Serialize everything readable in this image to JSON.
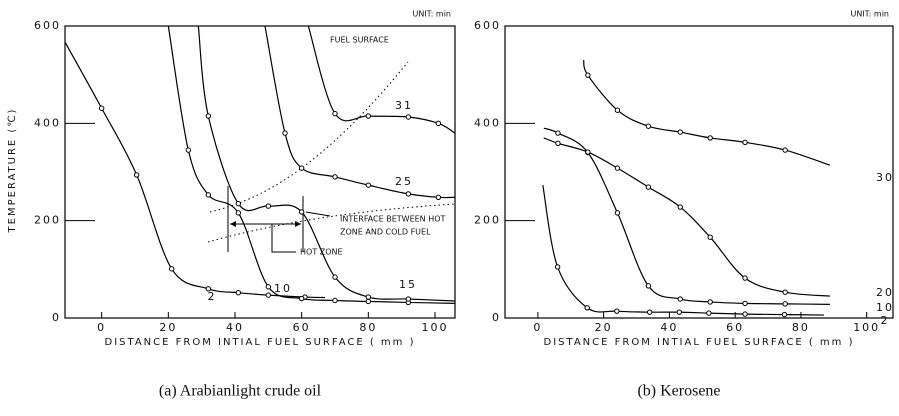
{
  "chart_data": [
    {
      "type": "line",
      "caption": "(a) Arabianlight crude oil",
      "unit_label": "UNIT: min",
      "xlabel": "DISTANCE FROM INTIAL FUEL SURFACE ( mm )",
      "ylabel": "TEMPERATURE (℃)",
      "annotations": [
        "FUEL SURFACE",
        "INTERFACE BETWEEN HOT",
        "ZONE AND COLD FUEL",
        "HOT ZONE"
      ],
      "xlim": [
        -11,
        106
      ],
      "ylim": [
        0,
        600
      ],
      "xticks": [
        0,
        20,
        40,
        60,
        80,
        100
      ],
      "yticks": [
        0,
        200,
        400,
        600
      ],
      "series": [
        {
          "name": "2",
          "color": "#000000",
          "x": [
            -11,
            0,
            10.5,
            21,
            32,
            41,
            50,
            61,
            67
          ],
          "values": [
            567,
            431,
            294,
            101,
            60,
            52,
            47,
            43,
            42
          ]
        },
        {
          "name": "10",
          "color": "#000000",
          "x": [
            20,
            26,
            32,
            41,
            50,
            60,
            70,
            80,
            92,
            106
          ],
          "values": [
            600,
            345,
            253,
            216,
            64,
            40,
            36,
            34,
            32,
            30
          ]
        },
        {
          "name": "15",
          "color": "#000000",
          "x": [
            29,
            32,
            41,
            50,
            60,
            70,
            80,
            92,
            106
          ],
          "values": [
            600,
            415,
            235,
            230,
            218,
            84,
            43,
            39,
            35
          ]
        },
        {
          "name": "25",
          "color": "#000000",
          "x": [
            49,
            55,
            60,
            70,
            80,
            92,
            101,
            106
          ],
          "values": [
            600,
            380,
            308,
            290,
            273,
            255,
            248,
            248
          ]
        },
        {
          "name": "31",
          "color": "#000000",
          "x": [
            62,
            70,
            80,
            92,
            101,
            106
          ],
          "values": [
            600,
            420,
            415,
            413,
            400,
            380
          ]
        }
      ]
    },
    {
      "type": "line",
      "caption": "(b) Kerosene",
      "unit_label": "UNIT: min",
      "xlabel": "DISTANCE FROM INTIAL FUEL SURFACE ( mm )",
      "xlim": [
        -10,
        108
      ],
      "ylim": [
        0,
        600
      ],
      "xticks": [
        0,
        20,
        40,
        60,
        80,
        100
      ],
      "yticks": [
        0,
        200,
        400,
        600
      ],
      "series": [
        {
          "name": "2",
          "color": "#000000",
          "x": [
            1.5,
            6,
            15,
            24,
            34,
            43,
            52,
            63,
            75,
            87
          ],
          "values": [
            273,
            105,
            21,
            14,
            12,
            12,
            10,
            8,
            7,
            6
          ]
        },
        {
          "name": "10",
          "color": "#000000",
          "x": [
            1.8,
            6.1,
            15.2,
            24.2,
            33.6,
            43.3,
            52.4,
            63,
            75.2,
            88.8
          ],
          "values": [
            390,
            380,
            340,
            216,
            66,
            39,
            33,
            30,
            29,
            28
          ]
        },
        {
          "name": "20",
          "color": "#000000",
          "x": [
            1.8,
            6.1,
            15.2,
            24.2,
            33.6,
            43.3,
            52.4,
            63,
            75.2,
            88.8
          ],
          "values": [
            370,
            359,
            341,
            308,
            269,
            228,
            166,
            82,
            53,
            45
          ]
        },
        {
          "name": "30",
          "color": "#000000",
          "x": [
            13.9,
            15.2,
            24.2,
            33.6,
            43.3,
            52.4,
            63,
            75.2,
            88.8
          ],
          "values": [
            530,
            499,
            427,
            394,
            382,
            370,
            361,
            345,
            314
          ]
        }
      ]
    }
  ]
}
